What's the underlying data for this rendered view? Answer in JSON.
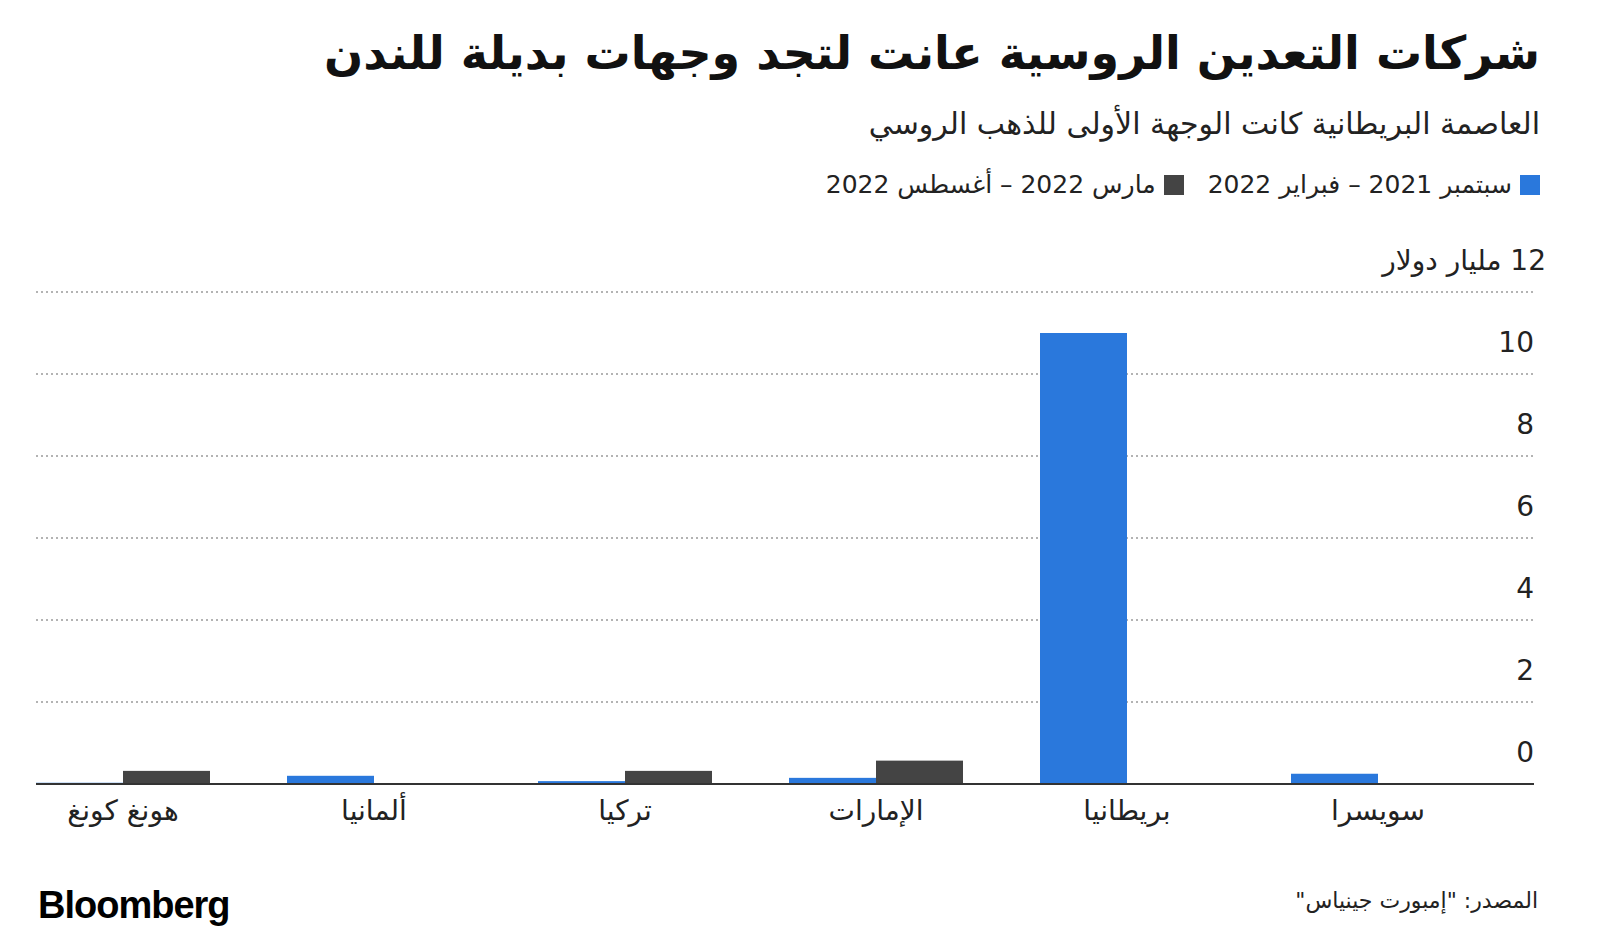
{
  "chart_data": {
    "type": "bar",
    "title": "شركات التعدين الروسية عانت لتجد وجهات بديلة للندن",
    "subtitle": "العاصمة البريطانية كانت الوجهة الأولى للذهب الروسي",
    "source": "المصدر: \"إمبورت جينياس\"",
    "logo": "Bloomberg",
    "categories": [
      "سويسرا",
      "بريطانيا",
      "الإمارات",
      "تركيا",
      "ألمانيا",
      "هونغ كونغ"
    ],
    "series": [
      {
        "name": "سبتمبر 2021 – فبراير 2022",
        "color": "#2a78dc",
        "values": [
          0.25,
          11.0,
          0.15,
          0.07,
          0.2,
          0.03
        ]
      },
      {
        "name": "مارس 2022 – أغسطس 2022",
        "color": "#444444",
        "values": [
          0.02,
          0.02,
          0.57,
          0.32,
          0.02,
          0.32
        ]
      }
    ],
    "ylim": [
      0,
      12
    ],
    "yticks": [
      0,
      2,
      4,
      6,
      8,
      10,
      {
        "value": 12,
        "label": "12 مليار دولار"
      }
    ],
    "grid": true
  }
}
